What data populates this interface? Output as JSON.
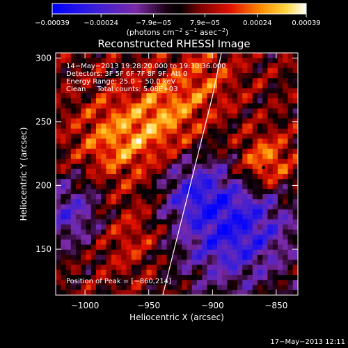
{
  "chart_data": {
    "type": "heatmap",
    "title": "Reconstructed RHESSI Image",
    "xlabel": "Heliocentric X (arcsec)",
    "ylabel": "Heliocentric Y (arcsec)",
    "xlim": [
      -1023,
      -833
    ],
    "ylim": [
      114,
      304
    ],
    "x_ticks": [
      -1000,
      -950,
      -900,
      -850
    ],
    "x_tick_labels": [
      "−1000",
      "−950",
      "−900",
      "−850"
    ],
    "y_ticks": [
      150,
      200,
      250,
      300
    ],
    "y_tick_labels": [
      "150",
      "200",
      "250",
      "300"
    ],
    "colorbar": {
      "ticks": [
        -0.00039,
        -0.00024,
        -7.9e-05,
        7.9e-05,
        0.00024,
        0.00039
      ],
      "tick_labels": [
        "−0.00039",
        "−0.00024",
        "−7.9e−05",
        "7.9e−05",
        "0.00024",
        "0.00039"
      ],
      "label_main": "(photons cm",
      "label_exp1": "−2",
      "label_mid1": " s",
      "label_exp2": "−1",
      "label_mid2": " asec",
      "label_exp3": "−2",
      "label_end": ")",
      "range": [
        -0.00039,
        0.00039
      ]
    },
    "annotations": [
      "14−May−2013 19:28:20.000 to 19:30:36.000",
      "Detectors: 3F 5F 6F 7F 8F 9F, Att 0",
      "Energy Range: 25.0 − 50.0 keV",
      "Clean     Total counts: 5.08E+03"
    ],
    "peak_label": "Position of Peak = [−860,214]",
    "peak": [
      -860,
      214
    ],
    "limb_curve": {
      "x": [
        -939,
        -930,
        -920,
        -910,
        -900,
        -893
      ],
      "y": [
        114,
        150,
        190,
        230,
        270,
        304
      ]
    },
    "footer_date": "17−May−2013 12:11",
    "grid": false,
    "legend": "none"
  }
}
